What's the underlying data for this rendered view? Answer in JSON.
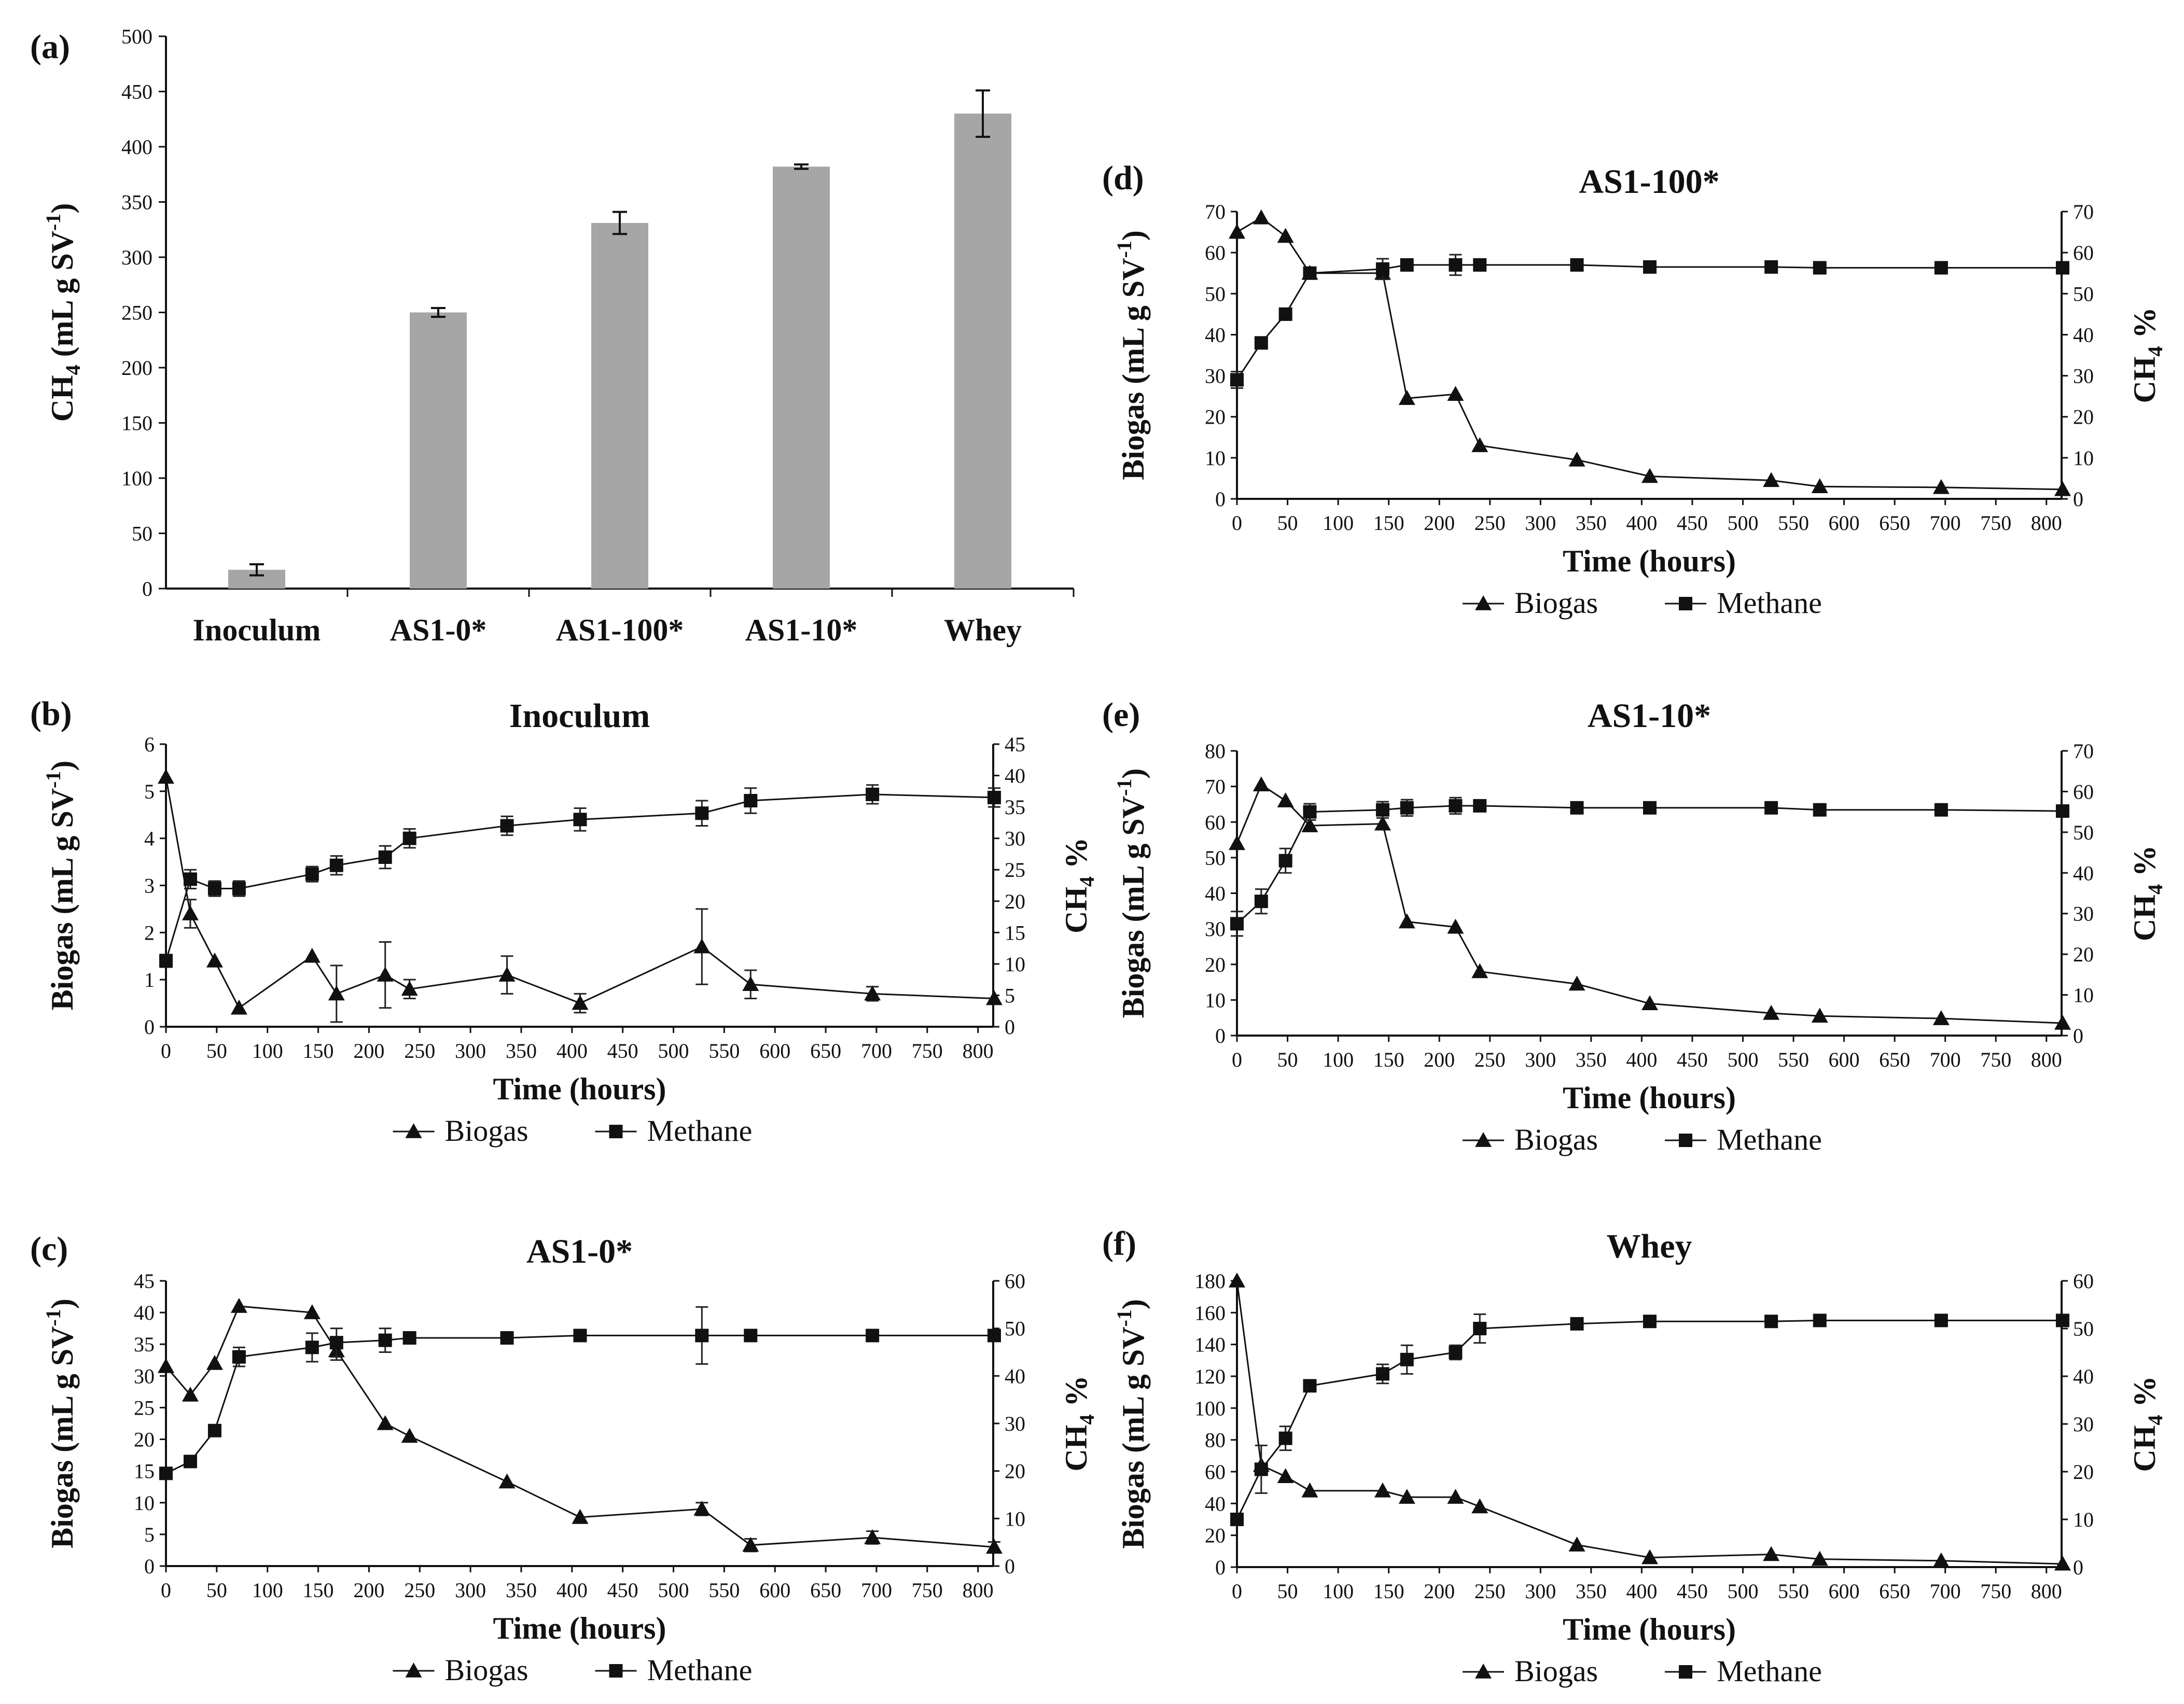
{
  "chart_data": [
    {
      "panel": "(a)",
      "type": "bar",
      "title": "",
      "ylabel": "CH4 (mL g SV-1)",
      "ylabel_parts": {
        "a": "CH",
        "sub": "4",
        "b": " (mL g SV",
        "sup": "-1",
        "c": ")"
      },
      "xlabel": "",
      "categories": [
        "Inoculum",
        "AS1-0*",
        "AS1-100*",
        "AS1-10*",
        "Whey"
      ],
      "values": [
        17,
        250,
        331,
        382,
        430
      ],
      "errors": [
        5,
        4,
        10,
        2,
        21
      ],
      "ylim": [
        0,
        500
      ],
      "yticks": [
        0,
        50,
        100,
        150,
        200,
        250,
        300,
        350,
        400,
        450,
        500
      ],
      "bar_color": "#a6a6a6"
    },
    {
      "panel": "(b)",
      "type": "line",
      "title": "Inoculum",
      "xlabel": "Time (hours)",
      "ylabel": "Biogas (mL g SV-1)",
      "ylabel_parts": {
        "a": "Biogas (mL g SV",
        "sup": "-1",
        "b": ")"
      },
      "y2label": "CH4 %",
      "y2label_parts": {
        "a": "CH",
        "sub": "4",
        "b": " %"
      },
      "xlim": [
        0,
        800
      ],
      "xticks": [
        0,
        50,
        100,
        150,
        200,
        250,
        300,
        350,
        400,
        450,
        500,
        550,
        600,
        650,
        700,
        750,
        800
      ],
      "ylim": [
        0,
        6
      ],
      "yticks": [
        0,
        1,
        2,
        3,
        4,
        5,
        6
      ],
      "y2lim": [
        0,
        45
      ],
      "y2ticks": [
        0,
        5,
        10,
        15,
        20,
        25,
        30,
        35,
        40,
        45
      ],
      "legend": [
        "Biogas",
        "Methane"
      ],
      "series": [
        {
          "name": "Biogas",
          "axis": "left",
          "marker": "triangle",
          "x": [
            0,
            24,
            48,
            72,
            144,
            168,
            216,
            240,
            336,
            408,
            528,
            576,
            696,
            816
          ],
          "y": [
            5.3,
            2.4,
            1.4,
            0.4,
            1.5,
            0.7,
            1.1,
            0.8,
            1.1,
            0.5,
            1.7,
            0.9,
            0.7,
            0.6
          ],
          "err": [
            0,
            0.3,
            0,
            0,
            0,
            0.6,
            0.7,
            0.2,
            0.4,
            0.2,
            0.8,
            0.3,
            0.15,
            0
          ]
        },
        {
          "name": "Methane",
          "axis": "right",
          "marker": "square",
          "x": [
            0,
            24,
            48,
            72,
            144,
            168,
            216,
            240,
            336,
            408,
            528,
            576,
            696,
            816
          ],
          "y": [
            10.5,
            23.5,
            22,
            22,
            24.3,
            25.7,
            27,
            30,
            32,
            33,
            34,
            36,
            37,
            36.5
          ],
          "err": [
            1,
            1.5,
            1.2,
            1.2,
            1.2,
            1.5,
            1.8,
            1.5,
            1.5,
            1.8,
            2,
            2,
            1.5,
            1.5
          ]
        }
      ]
    },
    {
      "panel": "(c)",
      "type": "line",
      "title": "AS1-0*",
      "xlabel": "Time (hours)",
      "ylabel": "Biogas (mL g SV-1)",
      "ylabel_parts": {
        "a": "Biogas (mL g SV",
        "sup": "-1",
        "b": ")"
      },
      "y2label": "CH4 %",
      "y2label_parts": {
        "a": "CH",
        "sub": "4",
        "b": " %"
      },
      "xlim": [
        0,
        800
      ],
      "xticks": [
        0,
        50,
        100,
        150,
        200,
        250,
        300,
        350,
        400,
        450,
        500,
        550,
        600,
        650,
        700,
        750,
        800
      ],
      "ylim": [
        0,
        45
      ],
      "yticks": [
        0,
        5,
        10,
        15,
        20,
        25,
        30,
        35,
        40,
        45
      ],
      "y2lim": [
        0,
        60
      ],
      "y2ticks": [
        0,
        10,
        20,
        30,
        40,
        50,
        60
      ],
      "legend": [
        "Biogas",
        "Methane"
      ],
      "series": [
        {
          "name": "Biogas",
          "axis": "left",
          "marker": "triangle",
          "x": [
            0,
            24,
            48,
            72,
            144,
            168,
            216,
            240,
            336,
            408,
            528,
            576,
            696,
            816
          ],
          "y": [
            31.5,
            27,
            32,
            41,
            40,
            34,
            22.5,
            20.5,
            13.3,
            7.7,
            9,
            3.3,
            4.5,
            3
          ],
          "err": [
            0,
            0,
            0,
            0,
            0,
            1.5,
            0,
            0,
            0,
            0,
            1,
            1,
            1,
            0.8
          ]
        },
        {
          "name": "Methane",
          "axis": "right",
          "marker": "square",
          "x": [
            0,
            24,
            48,
            72,
            144,
            168,
            216,
            240,
            336,
            408,
            528,
            576,
            696,
            816
          ],
          "y": [
            19.5,
            22,
            28.5,
            44,
            46,
            47,
            47.5,
            48,
            48,
            48.5,
            48.5,
            48.5,
            48.5,
            48.5
          ],
          "err": [
            0,
            0,
            0,
            2,
            3,
            3,
            2.5,
            0,
            0,
            0,
            6,
            0,
            0,
            0
          ]
        }
      ]
    },
    {
      "panel": "(d)",
      "type": "line",
      "title": "AS1-100*",
      "xlabel": "Time (hours)",
      "ylabel": "Biogas (mL g SV-1)",
      "ylabel_parts": {
        "a": "Biogas (mL g SV",
        "sup": "-1",
        "b": ")"
      },
      "y2label": "CH4 %",
      "y2label_parts": {
        "a": "CH",
        "sub": "4",
        "b": " %"
      },
      "xlim": [
        0,
        800
      ],
      "xticks": [
        0,
        50,
        100,
        150,
        200,
        250,
        300,
        350,
        400,
        450,
        500,
        550,
        600,
        650,
        700,
        750,
        800
      ],
      "ylim": [
        0,
        70
      ],
      "yticks": [
        0,
        10,
        20,
        30,
        40,
        50,
        60,
        70
      ],
      "y2lim": [
        0,
        70
      ],
      "y2ticks": [
        0,
        10,
        20,
        30,
        40,
        50,
        60,
        70
      ],
      "legend": [
        "Biogas",
        "Methane"
      ],
      "series": [
        {
          "name": "Biogas",
          "axis": "left",
          "marker": "triangle",
          "x": [
            0,
            24,
            48,
            72,
            144,
            168,
            216,
            240,
            336,
            408,
            528,
            576,
            696,
            816
          ],
          "y": [
            65,
            68.5,
            64,
            55,
            55,
            24.5,
            25.5,
            13,
            9.5,
            5.5,
            4.5,
            3,
            2.8,
            2.3
          ],
          "err": [
            0,
            0,
            0,
            0,
            0,
            0,
            0,
            0,
            0,
            0,
            0,
            0,
            0,
            0
          ]
        },
        {
          "name": "Methane",
          "axis": "right",
          "marker": "square",
          "x": [
            0,
            24,
            48,
            72,
            144,
            168,
            216,
            240,
            336,
            408,
            528,
            576,
            696,
            816
          ],
          "y": [
            29,
            38,
            45,
            55,
            56,
            57,
            57,
            57,
            57,
            56.5,
            56.5,
            56.3,
            56.3,
            56.3
          ],
          "err": [
            2,
            0,
            0,
            0,
            2.5,
            0,
            2.5,
            0,
            0,
            0,
            0,
            0,
            0,
            0
          ]
        }
      ]
    },
    {
      "panel": "(e)",
      "type": "line",
      "title": "AS1-10*",
      "xlabel": "Time (hours)",
      "ylabel": "Biogas (mL g SV-1)",
      "ylabel_parts": {
        "a": "Biogas (mL g SV",
        "sup": "-1",
        "b": ")"
      },
      "y2label": "CH4 %",
      "y2label_parts": {
        "a": "CH",
        "sub": "4",
        "b": " %"
      },
      "xlim": [
        0,
        800
      ],
      "xticks": [
        0,
        50,
        100,
        150,
        200,
        250,
        300,
        350,
        400,
        450,
        500,
        550,
        600,
        650,
        700,
        750,
        800
      ],
      "ylim": [
        0,
        80
      ],
      "yticks": [
        0,
        10,
        20,
        30,
        40,
        50,
        60,
        70,
        80
      ],
      "y2lim": [
        0,
        70
      ],
      "y2ticks": [
        0,
        10,
        20,
        30,
        40,
        50,
        60,
        70
      ],
      "legend": [
        "Biogas",
        "Methane"
      ],
      "series": [
        {
          "name": "Biogas",
          "axis": "left",
          "marker": "triangle",
          "x": [
            0,
            24,
            48,
            72,
            144,
            168,
            216,
            240,
            336,
            408,
            528,
            576,
            696,
            816
          ],
          "y": [
            54,
            70.5,
            66,
            59,
            59.5,
            32,
            30.5,
            18,
            14.5,
            9,
            6.3,
            5.5,
            4.8,
            3.5
          ],
          "err": [
            0,
            0,
            0,
            0,
            0,
            0,
            0,
            0,
            0,
            0,
            0,
            0,
            0,
            0
          ]
        },
        {
          "name": "Methane",
          "axis": "right",
          "marker": "square",
          "x": [
            0,
            24,
            48,
            72,
            144,
            168,
            216,
            240,
            336,
            408,
            528,
            576,
            696,
            816
          ],
          "y": [
            27.5,
            33,
            43,
            55,
            55.5,
            56,
            56.5,
            56.5,
            56,
            56,
            56,
            55.5,
            55.5,
            55.2
          ],
          "err": [
            3,
            3,
            3,
            2,
            2,
            2,
            2,
            0,
            0,
            0,
            0,
            0,
            0,
            0
          ]
        }
      ]
    },
    {
      "panel": "(f)",
      "type": "line",
      "title": "Whey",
      "xlabel": "Time (hours)",
      "ylabel": "Biogas (mL g SV-1)",
      "ylabel_parts": {
        "a": "Biogas (mL g SV",
        "sup": "-1",
        "b": ")"
      },
      "y2label": "CH4 %",
      "y2label_parts": {
        "a": "CH",
        "sub": "4",
        "b": " %"
      },
      "xlim": [
        0,
        800
      ],
      "xticks": [
        0,
        50,
        100,
        150,
        200,
        250,
        300,
        350,
        400,
        450,
        500,
        550,
        600,
        650,
        700,
        750,
        800
      ],
      "ylim": [
        0,
        180
      ],
      "yticks": [
        0,
        20,
        40,
        60,
        80,
        100,
        120,
        140,
        160,
        180
      ],
      "y2lim": [
        0,
        60
      ],
      "y2ticks": [
        0,
        10,
        20,
        30,
        40,
        50,
        60
      ],
      "legend": [
        "Biogas",
        "Methane"
      ],
      "series": [
        {
          "name": "Biogas",
          "axis": "left",
          "marker": "triangle",
          "x": [
            0,
            24,
            48,
            72,
            144,
            168,
            216,
            240,
            336,
            408,
            528,
            576,
            696,
            816
          ],
          "y": [
            180,
            64,
            57,
            48,
            48,
            44,
            44,
            38,
            14,
            6,
            8,
            5,
            4,
            2
          ],
          "err": [
            0,
            0,
            0,
            0,
            0,
            0,
            0,
            0,
            0,
            0,
            0,
            0,
            0,
            0
          ]
        },
        {
          "name": "Methane",
          "axis": "right",
          "marker": "square",
          "x": [
            0,
            24,
            48,
            72,
            144,
            168,
            216,
            240,
            336,
            408,
            528,
            576,
            696,
            816
          ],
          "y": [
            10,
            20.5,
            27,
            38,
            40.5,
            43.5,
            45,
            50,
            51,
            51.5,
            51.5,
            51.7,
            51.7,
            51.7
          ],
          "err": [
            0,
            5,
            2.5,
            0,
            2,
            3,
            1.5,
            3,
            0,
            0,
            0,
            0,
            0,
            0
          ]
        }
      ]
    }
  ]
}
